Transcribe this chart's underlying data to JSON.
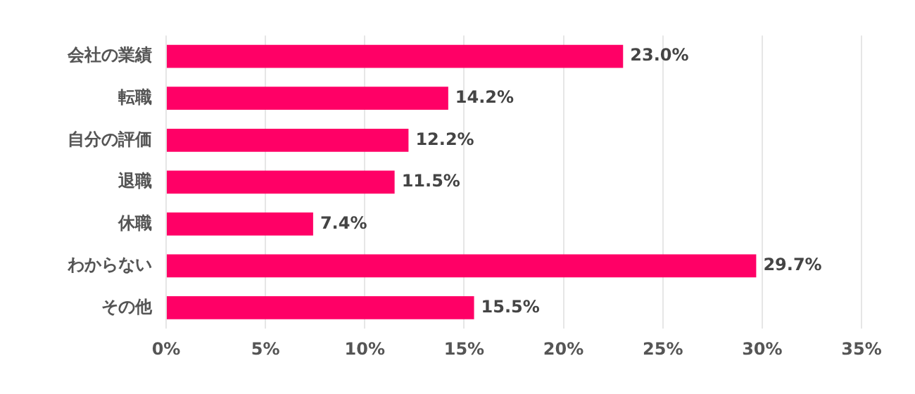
{
  "chart_data": {
    "type": "bar",
    "orientation": "horizontal",
    "categories": [
      "会社の業績",
      "転職",
      "自分の評価",
      "退職",
      "休職",
      "わからない",
      "その他"
    ],
    "values": [
      23.0,
      14.2,
      12.2,
      11.5,
      7.4,
      29.7,
      15.5
    ],
    "value_labels": [
      "23.0%",
      "14.2%",
      "12.2%",
      "11.5%",
      "7.4%",
      "29.7%",
      "15.5%"
    ],
    "color": "#ff0066",
    "xlim": [
      0,
      35
    ],
    "xticks": [
      {
        "value": 0,
        "label": "0%"
      },
      {
        "value": 5,
        "label": "5%"
      },
      {
        "value": 10,
        "label": "10%"
      },
      {
        "value": 15,
        "label": "15%"
      },
      {
        "value": 20,
        "label": "20%"
      },
      {
        "value": 25,
        "label": "25%"
      },
      {
        "value": 30,
        "label": "30%"
      },
      {
        "value": 35,
        "label": "35%"
      }
    ],
    "grid": "x",
    "legend": false
  }
}
